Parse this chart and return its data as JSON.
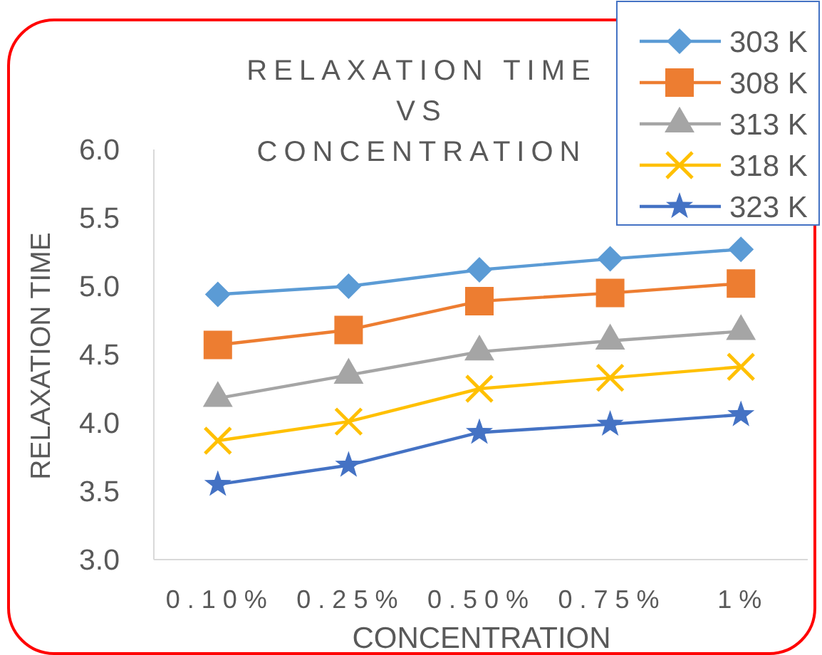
{
  "chart_data": {
    "type": "line",
    "title": "RELAXATION TIME VS CONCENTRATION",
    "xlabel": "CONCENTRATION",
    "ylabel": "RELAXATION TIME",
    "categories": [
      "0.10%",
      "0.25%",
      "0.50%",
      "0.75%",
      "1%"
    ],
    "ylim": [
      3,
      6
    ],
    "yticks": [
      {
        "value": 3,
        "label": "3.0"
      },
      3.5,
      {
        "value": 4,
        "label": "4.0"
      },
      4.5,
      {
        "value": 5,
        "label": "5.0"
      },
      5.5,
      {
        "value": 6,
        "label": "6.0"
      }
    ],
    "legend": "top right",
    "series": [
      {
        "name": "303 K",
        "color": "#5b9bd5",
        "marker": "diamond",
        "values": [
          4.94,
          5.0,
          5.12,
          5.2,
          5.27
        ]
      },
      {
        "name": "308 K",
        "color": "#ed7d31",
        "marker": "square",
        "values": [
          4.57,
          4.68,
          4.89,
          4.95,
          5.02
        ]
      },
      {
        "name": "313 K",
        "color": "#a5a5a5",
        "marker": "triangle",
        "values": [
          4.18,
          4.35,
          4.52,
          4.6,
          4.67
        ]
      },
      {
        "name": "318 K",
        "color": "#ffc000",
        "marker": "cross",
        "values": [
          3.87,
          4.01,
          4.25,
          4.33,
          4.41
        ]
      },
      {
        "name": "323 K",
        "color": "#4472c4",
        "marker": "star",
        "values": [
          3.55,
          3.69,
          3.93,
          3.99,
          4.06
        ]
      }
    ]
  }
}
